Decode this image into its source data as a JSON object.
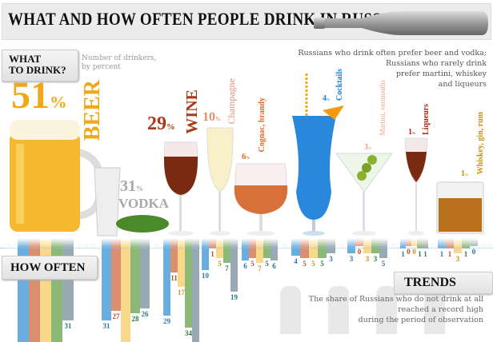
{
  "header": {
    "title": "WHAT AND HOW OFTEN PEOPLE DRINK IN RUSSIA"
  },
  "what_to_drink": {
    "line1": "WHAT",
    "line2": "TO DRINK?",
    "subtitle_line1": "Number of drinkers,",
    "subtitle_line2": "by percent"
  },
  "note": {
    "line1": "Russians who drink often prefer beer and vodka;",
    "line2": "Russians who rarely drink",
    "line3": "prefer martini, whiskey",
    "line4": "and liqueurs"
  },
  "drinks": [
    {
      "name": "BEER",
      "percent": "51",
      "pct_sign": "%",
      "color": "#f0a818",
      "frequency": [
        null,
        null,
        null,
        null,
        31
      ]
    },
    {
      "name": "VODKA",
      "percent": "31",
      "pct_sign": "%",
      "color": "#a8a8a8",
      "frequency": [
        31,
        27,
        null,
        28,
        26
      ]
    },
    {
      "name": "WINE",
      "percent": "29",
      "pct_sign": "%",
      "color": "#a83a1a",
      "frequency": [
        29,
        11,
        17,
        34,
        null
      ]
    },
    {
      "name": "Champagne",
      "percent": "10",
      "pct_sign": "%",
      "color": "#e09070",
      "frequency": [
        10,
        1,
        5,
        7,
        19
      ]
    },
    {
      "name": "Cognac, brandy",
      "percent": "6",
      "pct_sign": "%",
      "color": "#e06a20",
      "frequency": [
        6,
        5,
        7,
        5,
        6
      ]
    },
    {
      "name": "Cocktails",
      "percent": "4",
      "pct_sign": "%",
      "color": "#1a80d0",
      "frequency": [
        4,
        5,
        5,
        5,
        3
      ]
    },
    {
      "name": "Martini, vermouths",
      "percent": "3",
      "pct_sign": "%",
      "color": "#f0a080",
      "frequency": [
        3,
        0,
        3,
        3,
        5
      ]
    },
    {
      "name": "Liqueurs",
      "percent": "1",
      "pct_sign": "%",
      "color": "#b02810",
      "frequency": [
        1,
        0,
        0,
        1,
        1
      ]
    },
    {
      "name": "Whiskey, gin, rum",
      "percent": "1",
      "pct_sign": "%",
      "color": "#c89010",
      "frequency": [
        1,
        1,
        3,
        1,
        0
      ]
    }
  ],
  "frequency_colors": [
    "#6aaee0",
    "#dc8e70",
    "#fad88a",
    "#8cb878",
    "#98aab4"
  ],
  "frequency_label_colors": [
    "#2a78b8",
    "#c04a2a",
    "#d09010",
    "#2a7a3a",
    "#2a7a8a"
  ],
  "how_often": {
    "label": "HOW OFTEN"
  },
  "trends": {
    "label": "TRENDS",
    "line1": "The share of Russians who do not drink at all",
    "line2": "reached a record high",
    "line3": "during the period of observation"
  }
}
